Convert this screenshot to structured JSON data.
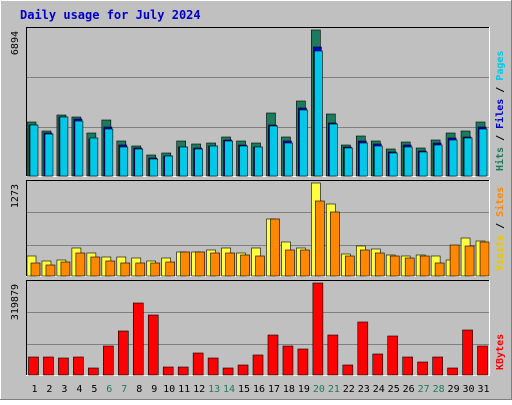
{
  "title": "Daily usage for July 2024",
  "colors": {
    "hits": "#006600",
    "hits_bar": "#1c7b5e",
    "files": "#0000cc",
    "pages": "#00c8e8",
    "visits": "#e8c800",
    "visits_bar": "#ffff40",
    "sites": "#ff8800",
    "kbytes": "#ff0000",
    "panel_bg": "#c0c0c0",
    "title": "#0000cc",
    "weekend_label": "#1c7b5e"
  },
  "chart_data": [
    {
      "type": "bar",
      "panel": "hits_files_pages",
      "categories": [
        "1",
        "2",
        "3",
        "4",
        "5",
        "6",
        "7",
        "8",
        "9",
        "10",
        "11",
        "12",
        "13",
        "14",
        "15",
        "16",
        "17",
        "18",
        "19",
        "20",
        "21",
        "22",
        "23",
        "24",
        "25",
        "26",
        "27",
        "28",
        "29",
        "30",
        "31"
      ],
      "weekend_days": [
        "6",
        "7",
        "13",
        "14",
        "20",
        "21",
        "27",
        "28"
      ],
      "ymax_label": "6894",
      "ylim": [
        0,
        6894
      ],
      "legend": [
        "Pages",
        "Files",
        "Hits"
      ],
      "series": [
        {
          "name": "Hits",
          "values": [
            2570,
            2140,
            2880,
            2790,
            2010,
            2630,
            1640,
            1440,
            1010,
            1100,
            1630,
            1510,
            1570,
            1830,
            1640,
            1540,
            2990,
            1830,
            3530,
            6894,
            2930,
            1460,
            1910,
            1670,
            1270,
            1610,
            1330,
            1710,
            2020,
            2140,
            2570
          ]
        },
        {
          "name": "Files",
          "values": [
            2410,
            2040,
            2790,
            2700,
            1760,
            2320,
            1450,
            1310,
            870,
            930,
            1390,
            1320,
            1430,
            1700,
            1480,
            1390,
            2400,
            1630,
            3200,
            6100,
            2500,
            1380,
            1660,
            1510,
            1140,
            1450,
            1190,
            1560,
            1790,
            1850,
            2330
          ]
        },
        {
          "name": "Pages",
          "values": [
            2390,
            1980,
            2790,
            2610,
            1790,
            2240,
            1380,
            1260,
            800,
            930,
            1360,
            1270,
            1400,
            1640,
            1400,
            1360,
            2350,
            1550,
            3100,
            5920,
            2460,
            1330,
            1560,
            1400,
            1080,
            1380,
            1110,
            1480,
            1700,
            1780,
            2240
          ]
        }
      ]
    },
    {
      "type": "bar",
      "panel": "visits_sites",
      "categories": [
        "1",
        "2",
        "3",
        "4",
        "5",
        "6",
        "7",
        "8",
        "9",
        "10",
        "11",
        "12",
        "13",
        "14",
        "15",
        "16",
        "17",
        "18",
        "19",
        "20",
        "21",
        "22",
        "23",
        "24",
        "25",
        "26",
        "27",
        "28",
        "29",
        "30",
        "31"
      ],
      "ymax_label": "1273",
      "ylim": [
        0,
        1273
      ],
      "legend": [
        "Sites",
        "Visits"
      ],
      "series": [
        {
          "name": "Visits",
          "values": [
            270,
            200,
            220,
            380,
            320,
            260,
            260,
            240,
            210,
            240,
            330,
            330,
            350,
            390,
            320,
            380,
            780,
            460,
            380,
            1273,
            980,
            300,
            410,
            370,
            290,
            270,
            290,
            270,
            220,
            520,
            480
          ]
        },
        {
          "name": "Sites",
          "values": [
            180,
            150,
            190,
            310,
            260,
            200,
            180,
            180,
            180,
            190,
            330,
            330,
            320,
            310,
            290,
            270,
            780,
            350,
            350,
            1030,
            880,
            270,
            350,
            320,
            270,
            250,
            270,
            180,
            420,
            410,
            460
          ]
        }
      ]
    },
    {
      "type": "bar",
      "panel": "kbytes",
      "categories": [
        "1",
        "2",
        "3",
        "4",
        "5",
        "6",
        "7",
        "8",
        "9",
        "10",
        "11",
        "12",
        "13",
        "14",
        "15",
        "16",
        "17",
        "18",
        "19",
        "20",
        "21",
        "22",
        "23",
        "24",
        "25",
        "26",
        "27",
        "28",
        "29",
        "30",
        "31"
      ],
      "ymax_label": "319879",
      "ylim": [
        0,
        319879
      ],
      "legend": [
        "KBytes"
      ],
      "series": [
        {
          "name": "KBytes",
          "values": [
            61000,
            61000,
            59000,
            64000,
            25000,
            101000,
            154000,
            251000,
            210000,
            29000,
            29000,
            78000,
            60000,
            25000,
            34000,
            70000,
            138000,
            101000,
            90000,
            319879,
            138000,
            35000,
            185000,
            73000,
            136000,
            63000,
            45000,
            63000,
            25000,
            155000,
            101000
          ]
        }
      ]
    }
  ]
}
